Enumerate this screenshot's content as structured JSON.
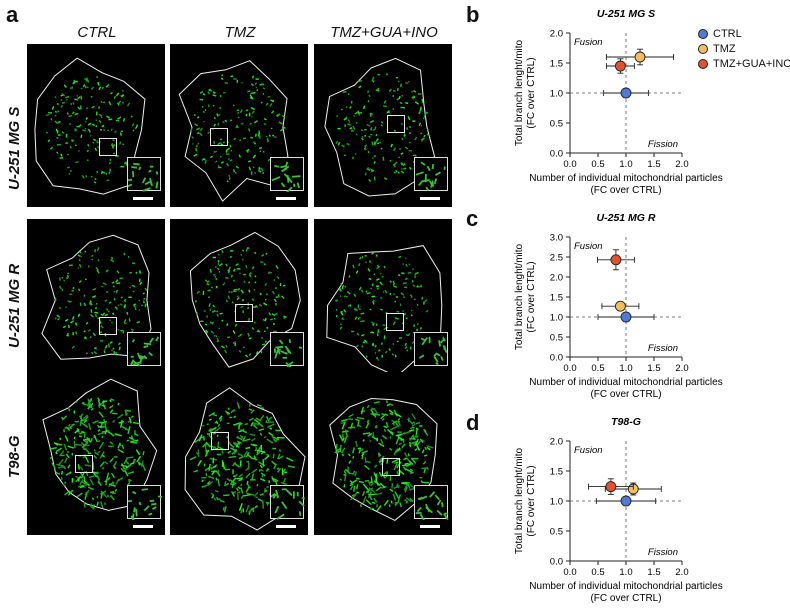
{
  "panel_a": {
    "letter": "a",
    "columns": [
      "CTRL",
      "TMZ",
      "TMZ+GUA+INO"
    ],
    "rows": [
      "U-251 MG S",
      "U-251 MG R",
      "T98-G"
    ]
  },
  "legend": {
    "items": [
      {
        "label": "CTRL",
        "color": "#4f79d6"
      },
      {
        "label": "TMZ",
        "color": "#f3bf5e"
      },
      {
        "label": "TMZ+GUA+INO",
        "color": "#e3502e"
      }
    ]
  },
  "chart_data": [
    {
      "letter": "b",
      "type": "scatter",
      "title": "U-251 MG S",
      "xlabel": "Number of individual mitochondrial particles",
      "xlabel2": "(FC over CTRL)",
      "ylabel": "Total branch lenght/mito",
      "ylabel2": "(FC over CTRL)",
      "xlim": [
        0,
        2.0
      ],
      "ylim": [
        0,
        2.0
      ],
      "xticks": [
        "0.0",
        "0.5",
        "1.0",
        "1.5",
        "2.0"
      ],
      "yticks": [
        "0.0",
        "0.5",
        "1.0",
        "1.5",
        "2.0"
      ],
      "annotations": [
        "Fusion",
        "Fission"
      ],
      "points": [
        {
          "name": "CTRL",
          "x": 1.0,
          "y": 1.0,
          "xerr": 0.4,
          "yerr": 0.06
        },
        {
          "name": "TMZ",
          "x": 1.25,
          "y": 1.6,
          "xerr": 0.6,
          "yerr": 0.13
        },
        {
          "name": "TMZ+GUA+INO",
          "x": 0.9,
          "y": 1.45,
          "xerr": 0.25,
          "yerr": 0.12
        }
      ]
    },
    {
      "letter": "c",
      "type": "scatter",
      "title": "U-251 MG R",
      "xlabel": "Number of individual mitochondrial particles",
      "xlabel2": "(FC over CTRL)",
      "ylabel": "Total branch lenght/mito",
      "ylabel2": "(FC over CTRL)",
      "xlim": [
        0,
        2.0
      ],
      "ylim": [
        0,
        3.0
      ],
      "xticks": [
        "0.0",
        "0.5",
        "1.0",
        "1.5",
        "2.0"
      ],
      "yticks": [
        "0.0",
        "0.5",
        "1.0",
        "1.5",
        "2.0",
        "2.5",
        "3.0"
      ],
      "annotations": [
        "Fusion",
        "Fission"
      ],
      "points": [
        {
          "name": "CTRL",
          "x": 1.0,
          "y": 1.0,
          "xerr": 0.5,
          "yerr": 0.05
        },
        {
          "name": "TMZ",
          "x": 0.9,
          "y": 1.27,
          "xerr": 0.33,
          "yerr": 0.1
        },
        {
          "name": "TMZ+GUA+INO",
          "x": 0.82,
          "y": 2.43,
          "xerr": 0.33,
          "yerr": 0.25
        }
      ]
    },
    {
      "letter": "d",
      "type": "scatter",
      "title": "T98-G",
      "xlabel": "Number of individual mitochondrial particles",
      "xlabel2": "(FC over CTRL)",
      "ylabel": "Total branch lenght/mito",
      "ylabel2": "(FC over CTRL)",
      "xlim": [
        0,
        2.0
      ],
      "ylim": [
        0,
        2.0
      ],
      "xticks": [
        "0.0",
        "0.5",
        "1.0",
        "1.5",
        "2.0"
      ],
      "yticks": [
        "0.0",
        "0.5",
        "1.0",
        "1.5",
        "2.0"
      ],
      "annotations": [
        "Fusion",
        "Fission"
      ],
      "points": [
        {
          "name": "CTRL",
          "x": 1.0,
          "y": 1.0,
          "xerr": 0.53,
          "yerr": 0.05
        },
        {
          "name": "TMZ",
          "x": 1.13,
          "y": 1.2,
          "xerr": 0.5,
          "yerr": 0.1
        },
        {
          "name": "TMZ+GUA+INO",
          "x": 0.73,
          "y": 1.24,
          "xerr": 0.4,
          "yerr": 0.13
        }
      ]
    }
  ]
}
